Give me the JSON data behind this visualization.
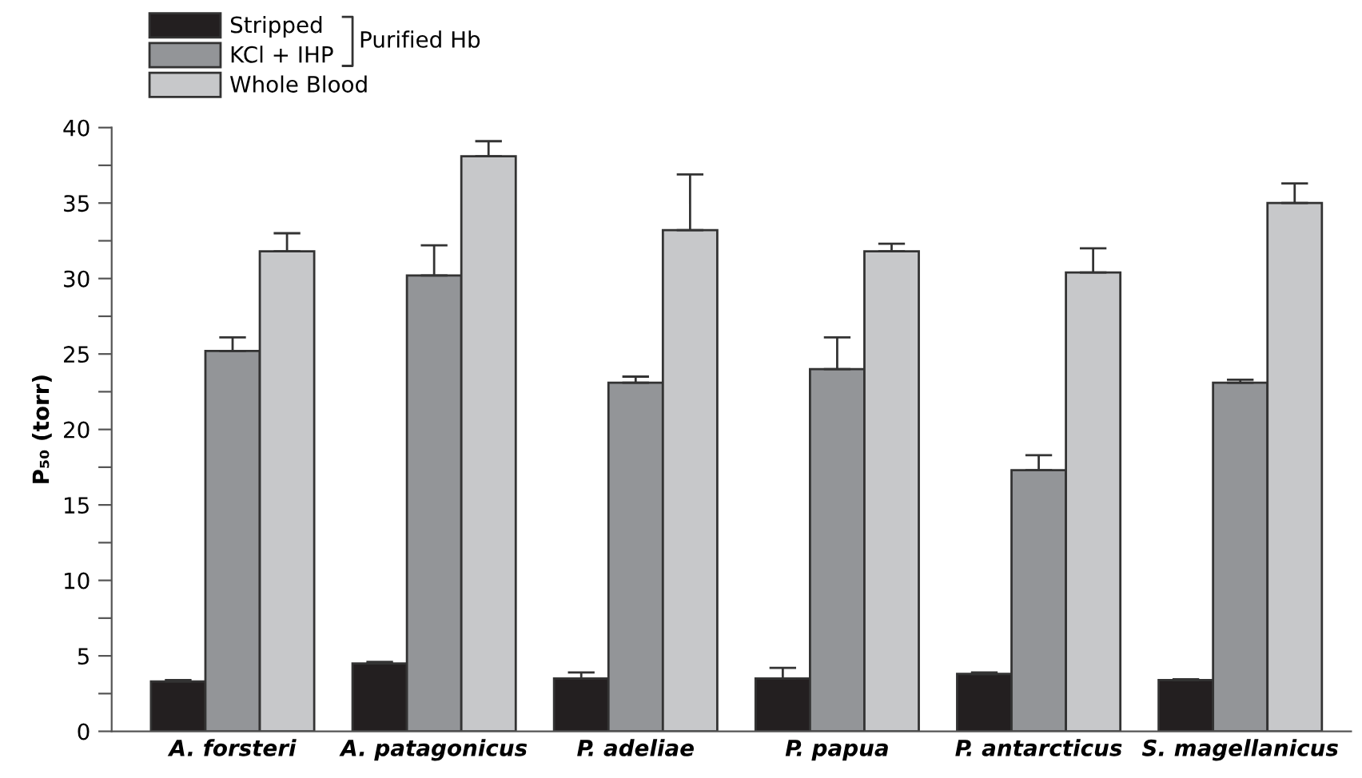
{
  "chart_data": {
    "type": "bar",
    "ylabel": "P₅₀ (torr)",
    "categories": [
      "A. forsteri",
      "A. patagonicus",
      "P. adeliae",
      "P. papua",
      "P. antarcticus",
      "S. magellanicus"
    ],
    "series": [
      {
        "name": "Stripped",
        "color": "#231f20",
        "values": [
          3.3,
          4.5,
          3.5,
          3.5,
          3.8,
          3.4
        ],
        "errors": [
          [
            3.3,
            3.4
          ],
          [
            4.5,
            4.6
          ],
          [
            3.5,
            3.9
          ],
          [
            3.5,
            4.2
          ],
          [
            3.8,
            3.9
          ],
          [
            3.4,
            3.45
          ]
        ]
      },
      {
        "name": "KCl + IHP",
        "color": "#939598",
        "values": [
          25.2,
          30.2,
          23.1,
          24.0,
          17.3,
          23.1
        ],
        "errors": [
          [
            25.2,
            26.1
          ],
          [
            30.2,
            32.2
          ],
          [
            23.1,
            23.5
          ],
          [
            24.0,
            26.1
          ],
          [
            17.3,
            18.3
          ],
          [
            23.1,
            23.3
          ]
        ]
      },
      {
        "name": "Whole Blood",
        "color": "#c7c8ca",
        "values": [
          31.8,
          38.1,
          33.2,
          31.8,
          30.4,
          35.0
        ],
        "errors": [
          [
            31.8,
            33.0
          ],
          [
            38.1,
            39.1
          ],
          [
            33.2,
            36.9
          ],
          [
            31.8,
            32.3
          ],
          [
            30.4,
            32.0
          ],
          [
            35.0,
            36.3
          ]
        ]
      }
    ],
    "annotations": [
      "Purified Hb"
    ],
    "ylim": [
      0,
      40
    ],
    "yticks": [
      0,
      {
        "value": 2.5,
        "label": null
      },
      5,
      {
        "value": 7.5,
        "label": null
      },
      10,
      {
        "value": 12.5,
        "label": null
      },
      15,
      {
        "value": 17.5,
        "label": null
      },
      20,
      {
        "value": 22.5,
        "label": null
      },
      25,
      {
        "value": 27.5,
        "label": null
      },
      30,
      {
        "value": 32.5,
        "label": null
      },
      35,
      {
        "value": 37.5,
        "label": null
      },
      40
    ],
    "grid": false,
    "legend": "top left"
  }
}
